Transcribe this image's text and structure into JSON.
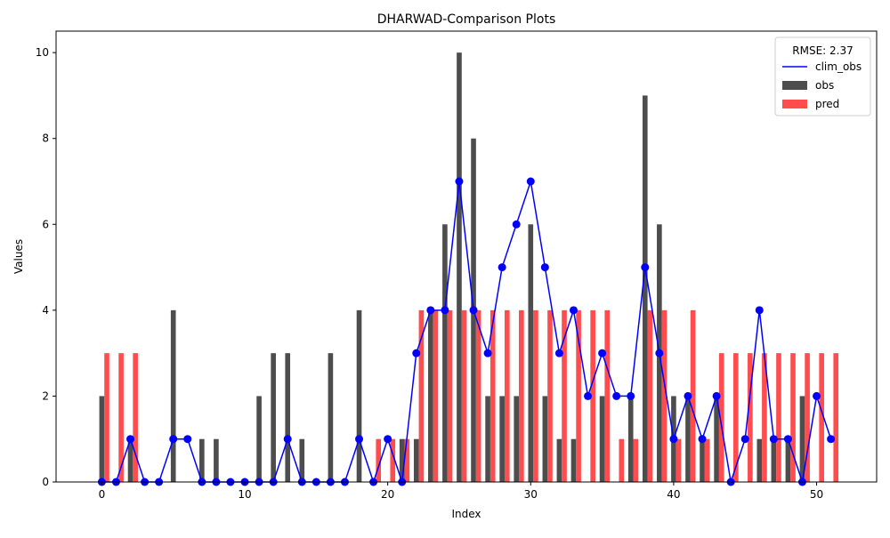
{
  "chart_data": {
    "type": "bar",
    "title": "DHARWAD-Comparison Plots",
    "xlabel": "Index",
    "ylabel": "Values",
    "xlim": [
      -3.2,
      54.2
    ],
    "ylim": [
      0,
      10.5
    ],
    "xticks": [
      0,
      10,
      20,
      30,
      40,
      50
    ],
    "yticks": [
      0,
      2,
      4,
      6,
      8,
      10
    ],
    "grid": false,
    "legend": {
      "title": "RMSE: 2.37",
      "placement": "top-right",
      "entries": [
        {
          "label": "clim_obs",
          "kind": "line",
          "color": "#0000ff"
        },
        {
          "label": "obs",
          "kind": "bar",
          "color": "#4d4d4d"
        },
        {
          "label": "pred",
          "kind": "bar",
          "color": "#ff4c4c"
        }
      ]
    },
    "x": [
      0,
      1,
      2,
      3,
      4,
      5,
      6,
      7,
      8,
      9,
      10,
      11,
      12,
      13,
      14,
      15,
      16,
      17,
      18,
      19,
      20,
      21,
      22,
      23,
      24,
      25,
      26,
      27,
      28,
      29,
      30,
      31,
      32,
      33,
      34,
      35,
      36,
      37,
      38,
      39,
      40,
      41,
      42,
      43,
      44,
      45,
      46,
      47,
      48,
      49,
      50,
      51
    ],
    "series": [
      {
        "name": "obs",
        "kind": "bar",
        "color": "#4d4d4d",
        "values": [
          2,
          0,
          1,
          0,
          0,
          4,
          0,
          1,
          1,
          0,
          0,
          2,
          3,
          3,
          1,
          0,
          3,
          0,
          4,
          0,
          0,
          1,
          1,
          4,
          6,
          10,
          8,
          2,
          2,
          2,
          6,
          2,
          1,
          1,
          0,
          2,
          0,
          2,
          9,
          6,
          2,
          2,
          1,
          2,
          0,
          0,
          1,
          1,
          1,
          2,
          0,
          0
        ]
      },
      {
        "name": "pred",
        "kind": "bar",
        "color": "#ff4c4c",
        "values": [
          3,
          3,
          3,
          0,
          0,
          0,
          0,
          0,
          0,
          0,
          0,
          0,
          0,
          0,
          0,
          0,
          0,
          0,
          0,
          1,
          1,
          1,
          4,
          4,
          4,
          4,
          4,
          4,
          4,
          4,
          4,
          4,
          4,
          4,
          4,
          4,
          1,
          1,
          4,
          4,
          1,
          4,
          1,
          3,
          3,
          3,
          3,
          3,
          3,
          3,
          3,
          3
        ]
      },
      {
        "name": "clim_obs",
        "kind": "line",
        "color": "#0000ff",
        "values": [
          0,
          0,
          1,
          0,
          0,
          1,
          1,
          0,
          0,
          0,
          0,
          0,
          0,
          1,
          0,
          0,
          0,
          0,
          1,
          0,
          1,
          0,
          3,
          4,
          4,
          7,
          4,
          3,
          5,
          6,
          7,
          5,
          3,
          4,
          2,
          3,
          2,
          2,
          5,
          3,
          1,
          2,
          1,
          2,
          0,
          1,
          4,
          1,
          1,
          0,
          2,
          1
        ]
      }
    ]
  }
}
